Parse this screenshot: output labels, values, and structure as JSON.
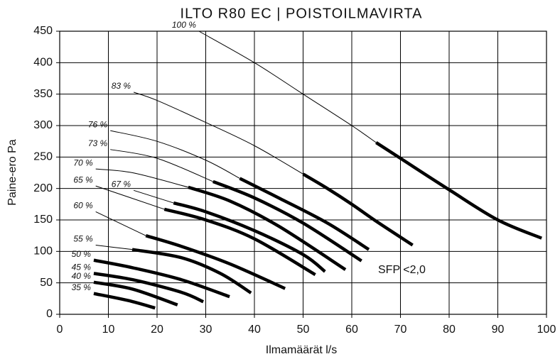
{
  "chart_data": {
    "type": "line",
    "title": "ILTO R80 EC | POISTOILMAVIRTA",
    "xlabel": "Ilmamäärät l/s",
    "ylabel": "Paine-ero Pa",
    "annotation": "SFP <2,0",
    "xlim": [
      0,
      100
    ],
    "xticks": [
      0,
      10,
      20,
      30,
      40,
      50,
      60,
      70,
      80,
      90,
      100
    ],
    "ylim": [
      0,
      450
    ],
    "yticks": [
      0,
      50,
      100,
      150,
      200,
      250,
      300,
      350,
      400,
      450
    ],
    "grid": true,
    "color": "#000000",
    "series": [
      {
        "name": "100 %",
        "segments": [
          {
            "style": "thin",
            "x": [
              28.6,
              40,
              50,
              60,
              65
            ],
            "values": [
              450,
              400,
              350,
              300,
              273
            ]
          },
          {
            "style": "thick",
            "x": [
              65,
              70,
              80,
              90,
              99
            ],
            "values": [
              273,
              248,
              198,
              150,
              121
            ]
          }
        ]
      },
      {
        "name": "83 %",
        "segments": [
          {
            "style": "thin",
            "x": [
              15.2,
              20,
              30,
              40,
              50
            ],
            "values": [
              353,
              340,
              305,
              268,
              223
            ]
          },
          {
            "style": "thick",
            "x": [
              50,
              55,
              60,
              65,
              72.5
            ],
            "values": [
              223,
              200,
              175,
              148,
              110
            ]
          }
        ]
      },
      {
        "name": "76 %",
        "segments": [
          {
            "style": "thin",
            "x": [
              10.4,
              20,
              30,
              37
            ],
            "values": [
              292,
              275,
              245,
              216
            ]
          },
          {
            "style": "thick",
            "x": [
              37,
              45,
              55,
              63.5
            ],
            "values": [
              216,
              185,
              145,
              103
            ]
          }
        ]
      },
      {
        "name": "73 %",
        "segments": [
          {
            "style": "thin",
            "x": [
              10.4,
              20,
              31.5
            ],
            "values": [
              262,
              248,
              211
            ]
          },
          {
            "style": "thick",
            "x": [
              31.5,
              40,
              50,
              62
            ],
            "values": [
              211,
              185,
              145,
              85
            ]
          }
        ]
      },
      {
        "name": "70 %",
        "segments": [
          {
            "style": "thin",
            "x": [
              7.4,
              15,
              26.4
            ],
            "values": [
              231,
              225,
              202
            ]
          },
          {
            "style": "thick",
            "x": [
              26.4,
              35,
              45,
              58.7
            ],
            "values": [
              202,
              180,
              140,
              71
            ]
          }
        ]
      },
      {
        "name": "67 %",
        "segments": [
          {
            "style": "thin",
            "x": [
              15.2,
              23.4
            ],
            "values": [
              197,
              177
            ]
          },
          {
            "style": "thick",
            "x": [
              23.4,
              30,
              40,
              50,
              54.5
            ],
            "values": [
              177,
              163,
              133,
              95,
              68
            ]
          }
        ]
      },
      {
        "name": "65 %",
        "segments": [
          {
            "style": "thin",
            "x": [
              7.4,
              21.5
            ],
            "values": [
              204,
              167
            ]
          },
          {
            "style": "thick",
            "x": [
              21.5,
              30,
              40,
              52.5
            ],
            "values": [
              167,
              150,
              120,
              63
            ]
          }
        ]
      },
      {
        "name": "60 %",
        "segments": [
          {
            "style": "thin",
            "x": [
              7.4,
              17.7
            ],
            "values": [
              163,
              125
            ]
          },
          {
            "style": "thick",
            "x": [
              17.7,
              25,
              35,
              46.3
            ],
            "values": [
              125,
              108,
              80,
              41
            ]
          }
        ]
      },
      {
        "name": "55 %",
        "segments": [
          {
            "style": "thin",
            "x": [
              7.4,
              14.9
            ],
            "values": [
              110,
              103
            ]
          },
          {
            "style": "thick",
            "x": [
              14.9,
              25,
              33,
              39.3
            ],
            "values": [
              103,
              90,
              65,
              34
            ]
          }
        ]
      },
      {
        "name": "50 %",
        "segments": [
          {
            "style": "thick",
            "x": [
              7,
              15,
              25,
              34.9
            ],
            "values": [
              86,
              74,
              55,
              28
            ]
          }
        ]
      },
      {
        "name": "45 %",
        "segments": [
          {
            "style": "thick",
            "x": [
              7,
              15,
              25,
              29.5
            ],
            "values": [
              65,
              55,
              35,
              20
            ]
          }
        ]
      },
      {
        "name": "40 %",
        "segments": [
          {
            "style": "thick",
            "x": [
              7,
              15,
              24.2
            ],
            "values": [
              51,
              40,
              15
            ]
          }
        ]
      },
      {
        "name": "35 %",
        "segments": [
          {
            "style": "thick",
            "x": [
              7,
              14,
              19.6
            ],
            "values": [
              33,
              22,
              10
            ]
          }
        ]
      }
    ]
  }
}
